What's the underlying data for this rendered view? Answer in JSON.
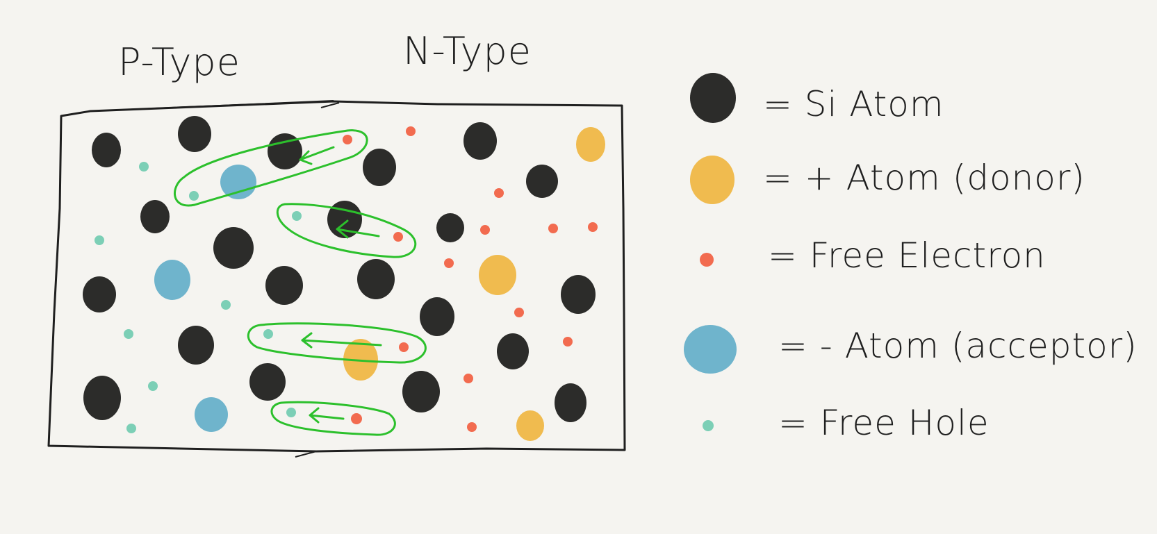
{
  "region_labels": {
    "p_type": "P-Type",
    "n_type": "N-Type"
  },
  "legend": [
    {
      "key": "si",
      "label": "= Si Atom",
      "color": "#2c2c2a",
      "icon": "si-atom-icon"
    },
    {
      "key": "donor",
      "label": "= + Atom (donor)",
      "color": "#f0bb4f",
      "icon": "donor-atom-icon"
    },
    {
      "key": "electron",
      "label": "= Free Electron",
      "color": "#f26b4f",
      "icon": "free-electron-icon"
    },
    {
      "key": "acceptor",
      "label": "= - Atom (acceptor)",
      "color": "#6fb4cc",
      "icon": "acceptor-atom-icon"
    },
    {
      "key": "hole",
      "label": "= Free Hole",
      "color": "#7ccfb6",
      "icon": "free-hole-icon"
    }
  ],
  "colors": {
    "background": "#f5f4f0",
    "outline": "#1f1f1f",
    "recombination_loop": "#2cc02c"
  }
}
